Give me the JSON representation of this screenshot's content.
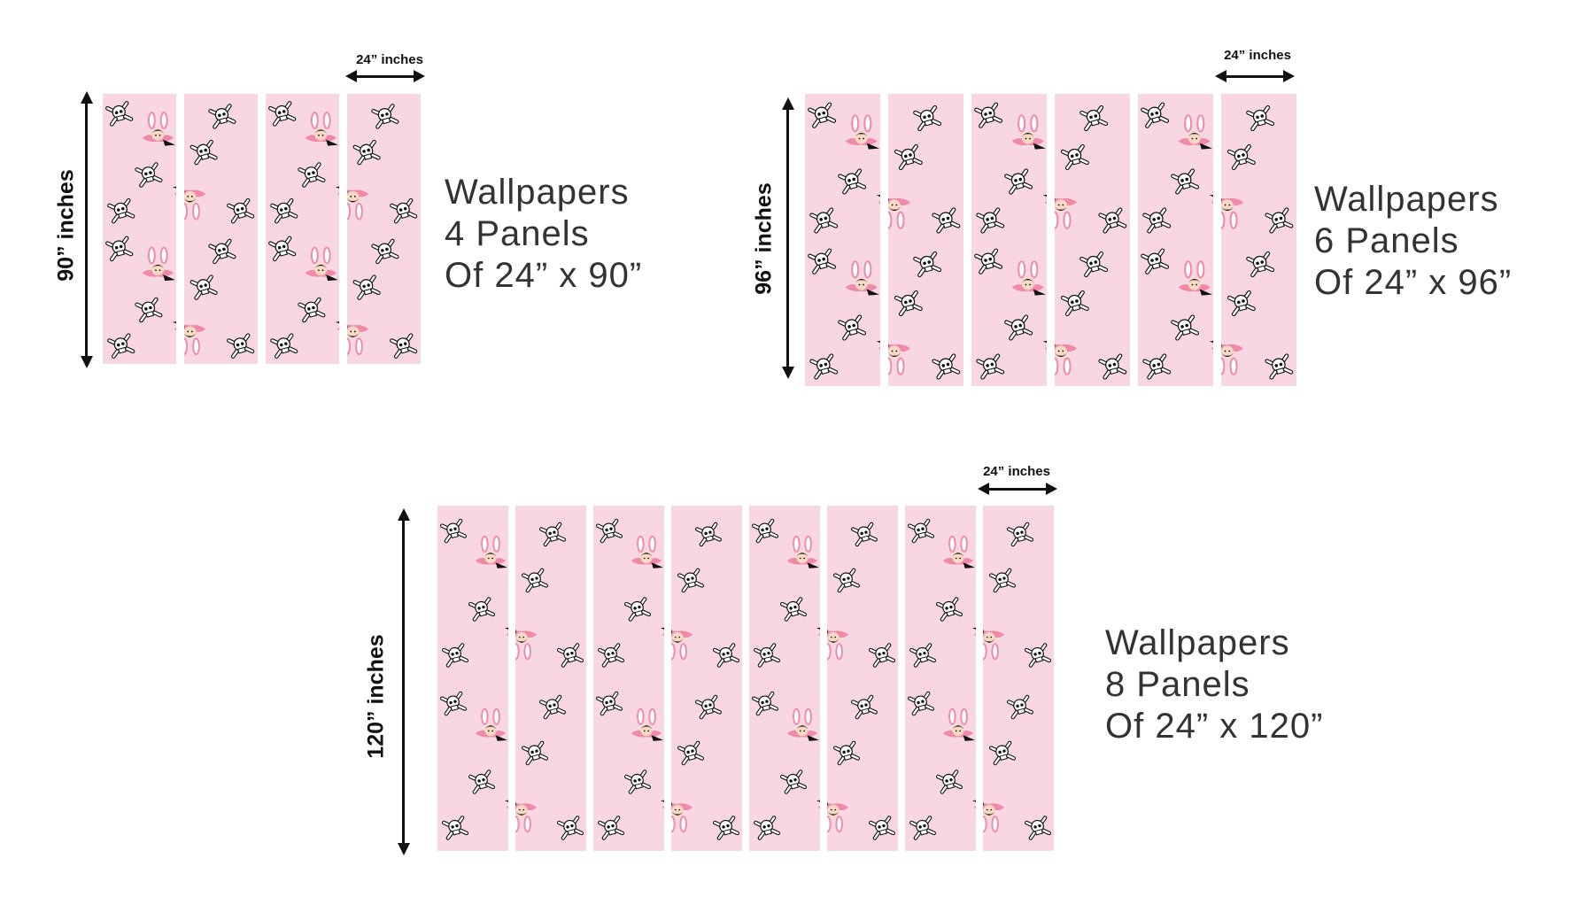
{
  "groups": [
    {
      "id": "g4",
      "height_label": "90” inches",
      "width_label": "24” inches",
      "caption": [
        "Wallpapers",
        "4 Panels",
        "Of 24” x 90”"
      ],
      "panel_count": 4
    },
    {
      "id": "g6",
      "height_label": "96” inches",
      "width_label": "24” inches",
      "caption": [
        "Wallpapers",
        "6 Panels",
        "Of 24” x 96”"
      ],
      "panel_count": 6
    },
    {
      "id": "g8",
      "height_label": "120” inches",
      "width_label": "24” inches",
      "caption": [
        "Wallpapers",
        "8 Panels",
        "Of 24” x 120”"
      ],
      "panel_count": 8
    }
  ],
  "colors": {
    "panel": "#f8d7e3",
    "accent_pink": "#f08aa8",
    "ink": "#111111",
    "caption": "#333333"
  },
  "icons": [
    "skull-crossbones-icon",
    "bunny-girl-icon"
  ]
}
